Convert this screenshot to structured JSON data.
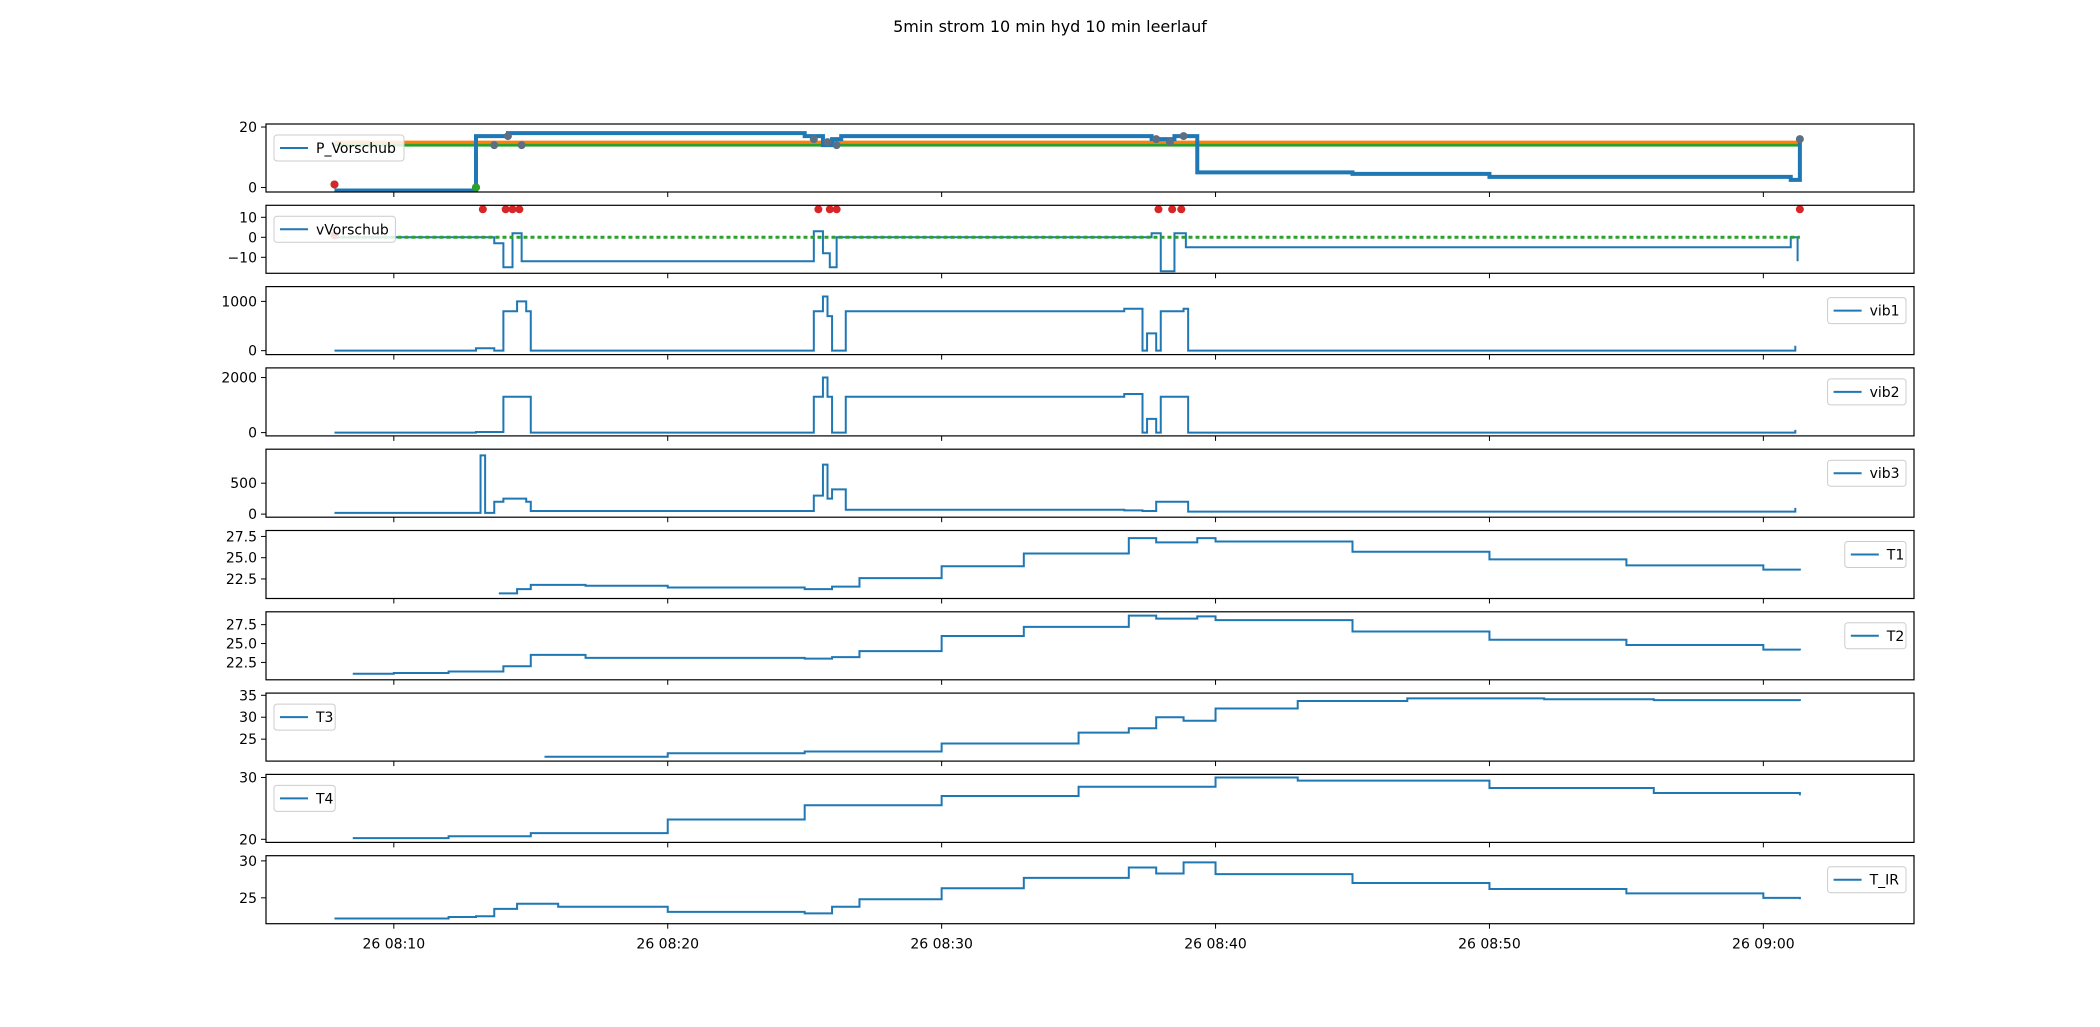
{
  "figure": {
    "title": "5min strom 10 min hyd 10 min leerlauf",
    "x_tick_labels": [
      "26 08:10",
      "26 08:20",
      "26 08:30",
      "26 08:40",
      "26 08:50",
      "26 09:00"
    ]
  },
  "colors": {
    "series": "#1f77b4",
    "orange": "#ff7f0e",
    "green": "#2ca02c",
    "red": "#d62728",
    "grey_marker": "#5d7083"
  },
  "chart_data": [
    {
      "type": "line",
      "name": "P_Vorschub",
      "legend": "P_Vorschub",
      "legend_loc": "left",
      "ylim": [
        -1.5,
        21
      ],
      "yticks": [
        0,
        20
      ],
      "ytick_labels": [
        "0",
        "20"
      ],
      "x": [
        "08:07:50",
        "08:12:55",
        "08:13:00",
        "08:14:10",
        "08:15:00",
        "08:25:00",
        "08:25:40",
        "08:26:00",
        "08:26:20",
        "08:37:40",
        "08:38:30",
        "08:38:50",
        "08:39:20",
        "08:45:00",
        "08:50:00",
        "09:01:00",
        "09:01:20"
      ],
      "values": [
        -1,
        -1,
        17,
        18,
        18,
        17,
        14,
        16,
        17,
        16,
        17,
        17,
        5,
        4.5,
        3.5,
        2.5,
        17
      ],
      "reference_lines": [
        {
          "name": "orange",
          "value": 15
        },
        {
          "name": "green",
          "value": 14
        }
      ],
      "marker_x": [
        "08:07:50",
        "08:13:00",
        "08:13:40",
        "08:14:10",
        "08:14:40",
        "08:25:20",
        "08:25:50",
        "08:26:10",
        "08:37:50",
        "08:38:20",
        "08:38:50",
        "09:01:20"
      ],
      "marker_y": [
        1,
        0,
        14,
        17,
        14,
        16,
        15,
        14,
        16,
        15,
        17,
        16
      ]
    },
    {
      "type": "line",
      "name": "vVorschub",
      "legend": "vVorschub",
      "legend_loc": "left",
      "ylim": [
        -18,
        16
      ],
      "yticks": [
        -10,
        0,
        10
      ],
      "ytick_labels": [
        "−10",
        "0",
        "10"
      ],
      "x": [
        "08:07:50",
        "08:13:00",
        "08:13:40",
        "08:14:00",
        "08:14:20",
        "08:14:40",
        "08:25:20",
        "08:25:40",
        "08:25:55",
        "08:26:10",
        "08:37:40",
        "08:38:00",
        "08:38:30",
        "08:38:55",
        "09:01:00",
        "09:01:15"
      ],
      "values": [
        0,
        0,
        -3,
        -15,
        2,
        -12,
        3,
        -8,
        -15,
        0,
        2,
        -17,
        2,
        -5,
        0,
        -12
      ],
      "red_marker_x": [
        "08:07:50",
        "08:13:15",
        "08:14:05",
        "08:14:20",
        "08:14:35",
        "08:25:30",
        "08:25:55",
        "08:26:10",
        "08:37:55",
        "08:38:25",
        "08:38:45",
        "09:01:20"
      ],
      "red_marker_y": [
        1,
        14,
        14,
        14,
        14,
        14,
        14,
        14,
        14,
        14,
        14,
        14
      ]
    },
    {
      "type": "line",
      "name": "vib1",
      "legend": "vib1",
      "legend_loc": "right",
      "ylim": [
        -80,
        1300
      ],
      "yticks": [
        0,
        1000
      ],
      "ytick_labels": [
        "0",
        "1000"
      ],
      "x": [
        "08:07:50",
        "08:12:50",
        "08:13:00",
        "08:13:40",
        "08:14:00",
        "08:14:30",
        "08:14:50",
        "08:15:00",
        "08:25:10",
        "08:25:20",
        "08:25:40",
        "08:25:50",
        "08:26:00",
        "08:26:30",
        "08:36:40",
        "08:37:20",
        "08:37:30",
        "08:37:50",
        "08:38:00",
        "08:38:50",
        "08:39:00",
        "09:01:00",
        "09:01:10"
      ],
      "values": [
        0,
        0,
        50,
        0,
        800,
        1000,
        800,
        0,
        0,
        800,
        1100,
        700,
        0,
        800,
        850,
        0,
        350,
        0,
        800,
        850,
        0,
        0,
        100
      ]
    },
    {
      "type": "line",
      "name": "vib2",
      "legend": "vib2",
      "legend_loc": "right",
      "ylim": [
        -120,
        2350
      ],
      "yticks": [
        0,
        2000
      ],
      "ytick_labels": [
        "0",
        "2000"
      ],
      "x": [
        "08:07:50",
        "08:13:00",
        "08:13:40",
        "08:14:00",
        "08:14:50",
        "08:15:00",
        "08:25:10",
        "08:25:20",
        "08:25:40",
        "08:25:50",
        "08:26:00",
        "08:26:30",
        "08:36:40",
        "08:37:20",
        "08:37:30",
        "08:37:50",
        "08:38:00",
        "08:38:50",
        "08:39:00",
        "09:01:00",
        "09:01:10"
      ],
      "values": [
        0,
        20,
        20,
        1300,
        1300,
        0,
        0,
        1300,
        2000,
        1300,
        0,
        1300,
        1400,
        0,
        500,
        0,
        1300,
        1300,
        0,
        0,
        100
      ]
    },
    {
      "type": "line",
      "name": "vib3",
      "legend": "vib3",
      "legend_loc": "right",
      "ylim": [
        -50,
        1050
      ],
      "yticks": [
        0,
        500
      ],
      "ytick_labels": [
        "0",
        "500"
      ],
      "x": [
        "08:07:50",
        "08:12:50",
        "08:13:10",
        "08:13:20",
        "08:13:40",
        "08:14:00",
        "08:14:50",
        "08:15:00",
        "08:25:10",
        "08:25:20",
        "08:25:40",
        "08:25:50",
        "08:26:00",
        "08:26:30",
        "08:36:40",
        "08:37:20",
        "08:37:50",
        "08:38:50",
        "08:39:00",
        "09:01:00",
        "09:01:10"
      ],
      "values": [
        20,
        20,
        950,
        20,
        200,
        250,
        200,
        50,
        50,
        300,
        800,
        250,
        400,
        70,
        60,
        50,
        200,
        200,
        40,
        40,
        100
      ]
    },
    {
      "type": "line",
      "name": "T1",
      "legend": "T1",
      "legend_loc": "right",
      "ylim": [
        20.2,
        28.2
      ],
      "yticks": [
        22.5,
        25.0,
        27.5
      ],
      "ytick_labels": [
        "22.5",
        "25.0",
        "27.5"
      ],
      "x": [
        "08:13:50",
        "08:14:30",
        "08:15:00",
        "08:17:00",
        "08:20:00",
        "08:25:00",
        "08:26:00",
        "08:27:00",
        "08:30:00",
        "08:33:00",
        "08:36:50",
        "08:37:50",
        "08:39:20",
        "08:40:00",
        "08:45:00",
        "08:50:00",
        "08:55:00",
        "09:00:00",
        "09:01:20"
      ],
      "values": [
        20.8,
        21.3,
        21.8,
        21.7,
        21.5,
        21.3,
        21.6,
        22.6,
        24.0,
        25.5,
        27.3,
        26.8,
        27.3,
        26.9,
        25.7,
        24.8,
        24.1,
        23.6,
        23.5
      ]
    },
    {
      "type": "line",
      "name": "T2",
      "legend": "T2",
      "legend_loc": "right",
      "ylim": [
        20.2,
        29.2
      ],
      "yticks": [
        22.5,
        25.0,
        27.5
      ],
      "ytick_labels": [
        "22.5",
        "25.0",
        "27.5"
      ],
      "x": [
        "08:08:30",
        "08:10:00",
        "08:12:00",
        "08:14:00",
        "08:15:00",
        "08:17:00",
        "08:25:00",
        "08:26:00",
        "08:27:00",
        "08:30:00",
        "08:33:00",
        "08:36:50",
        "08:37:50",
        "08:38:50",
        "08:39:20",
        "08:40:00",
        "08:45:00",
        "08:50:00",
        "08:55:00",
        "09:00:00",
        "09:01:20"
      ],
      "values": [
        21.0,
        21.1,
        21.3,
        22.0,
        23.5,
        23.1,
        23.0,
        23.2,
        24.0,
        26.0,
        27.2,
        28.7,
        28.3,
        28.3,
        28.6,
        28.1,
        26.6,
        25.5,
        24.8,
        24.2,
        24.1
      ]
    },
    {
      "type": "line",
      "name": "T3",
      "legend": "T3",
      "legend_loc": "left",
      "ylim": [
        20,
        35.5
      ],
      "yticks": [
        25,
        30,
        35
      ],
      "ytick_labels": [
        "25",
        "30",
        "35"
      ],
      "x": [
        "08:15:30",
        "08:20:00",
        "08:25:00",
        "08:30:00",
        "08:35:00",
        "08:36:50",
        "08:37:50",
        "08:38:50",
        "08:40:00",
        "08:43:00",
        "08:47:00",
        "08:52:00",
        "08:56:00",
        "09:01:20"
      ],
      "values": [
        21.0,
        21.8,
        22.2,
        24.0,
        26.5,
        27.5,
        30.0,
        29.2,
        32.0,
        33.7,
        34.3,
        34.1,
        33.9,
        33.7
      ]
    },
    {
      "type": "line",
      "name": "T4",
      "legend": "T4",
      "legend_loc": "left",
      "ylim": [
        19.5,
        30.5
      ],
      "yticks": [
        20,
        30
      ],
      "ytick_labels": [
        "20",
        "30"
      ],
      "x": [
        "08:08:30",
        "08:12:00",
        "08:15:00",
        "08:20:00",
        "08:25:00",
        "08:30:00",
        "08:35:00",
        "08:40:00",
        "08:43:00",
        "08:50:00",
        "08:56:00",
        "09:01:20"
      ],
      "values": [
        20.2,
        20.5,
        21.0,
        23.2,
        25.5,
        27.0,
        28.5,
        30.0,
        29.5,
        28.3,
        27.5,
        27.1
      ]
    },
    {
      "type": "line",
      "name": "T_IR",
      "legend": "T_IR",
      "legend_loc": "right",
      "ylim": [
        21.5,
        30.7
      ],
      "yticks": [
        25,
        30
      ],
      "ytick_labels": [
        "25",
        "30"
      ],
      "x": [
        "08:07:50",
        "08:12:00",
        "08:13:00",
        "08:13:40",
        "08:14:30",
        "08:16:00",
        "08:20:00",
        "08:25:00",
        "08:26:00",
        "08:27:00",
        "08:30:00",
        "08:33:00",
        "08:36:50",
        "08:37:50",
        "08:38:50",
        "08:40:00",
        "08:45:00",
        "08:50:00",
        "08:55:00",
        "09:00:00",
        "09:01:20"
      ],
      "values": [
        22.2,
        22.4,
        22.5,
        23.5,
        24.2,
        23.8,
        23.1,
        22.9,
        23.8,
        24.8,
        26.3,
        27.7,
        29.1,
        28.3,
        29.8,
        28.2,
        27.0,
        26.2,
        25.6,
        25.0,
        24.8
      ]
    }
  ]
}
